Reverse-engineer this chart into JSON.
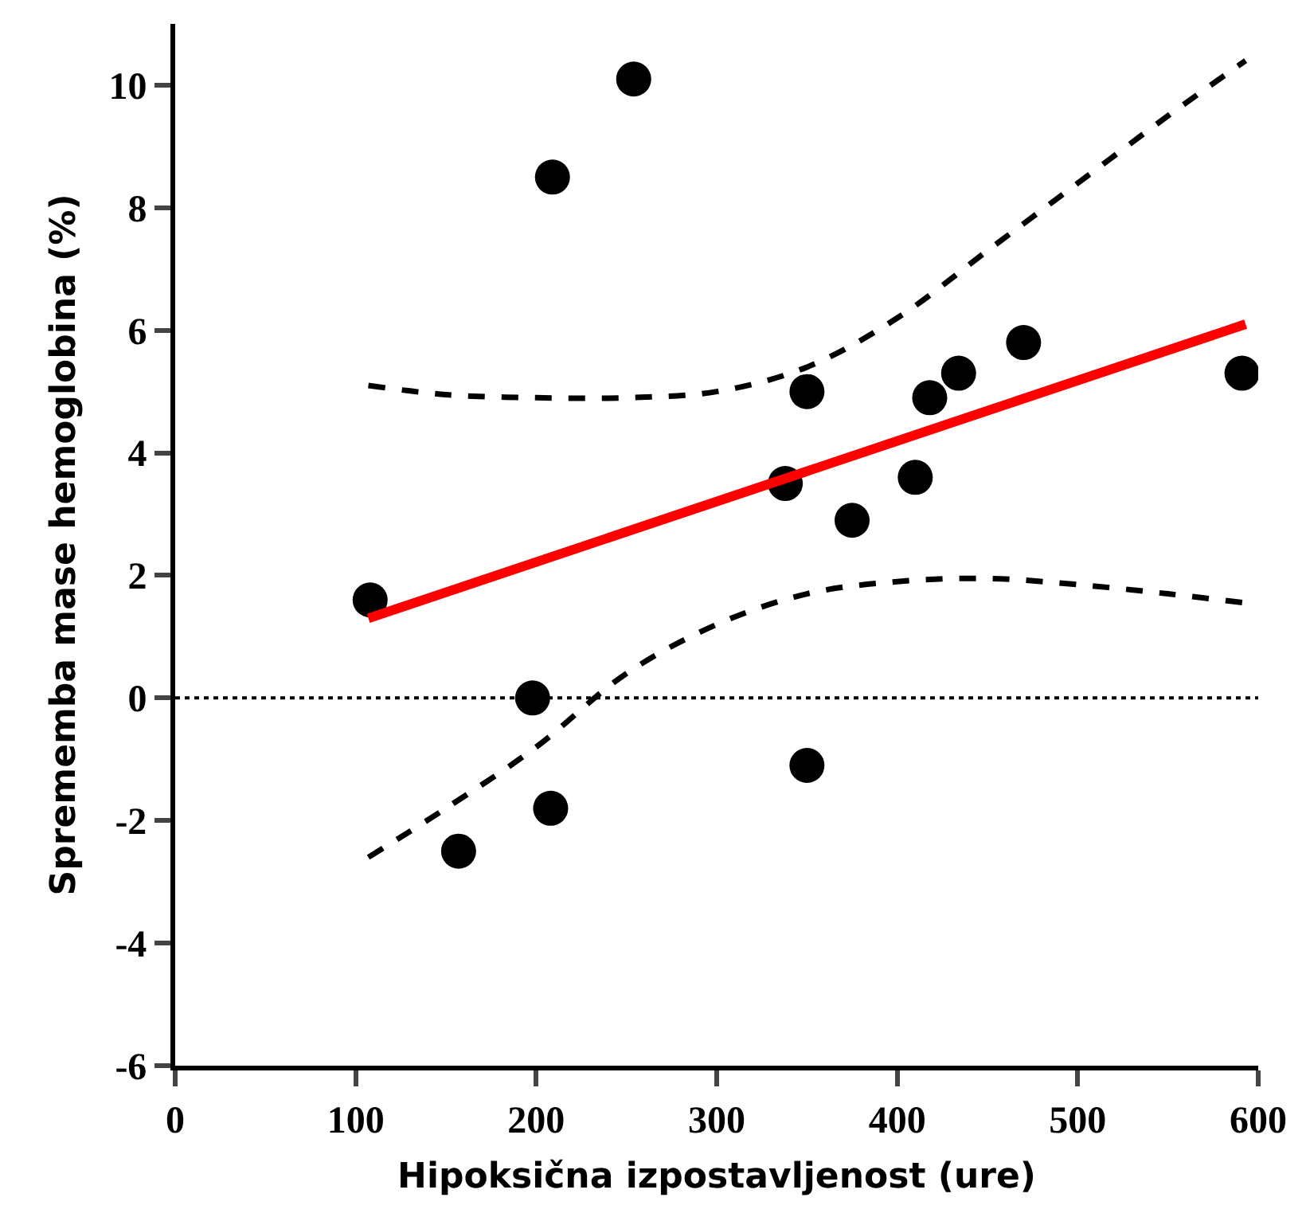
{
  "chart_data": {
    "type": "scatter",
    "xlabel": "Hipoksična izpostavljenost (ure)",
    "ylabel": "Sprememba mase hemoglobina (%)",
    "xlim": [
      0,
      600
    ],
    "xticks": [
      0,
      100,
      200,
      300,
      400,
      500,
      600
    ],
    "ylim": [
      -6,
      11
    ],
    "yticks": [
      -6,
      -4,
      -2,
      0,
      2,
      4,
      6,
      8,
      10
    ],
    "grid": false,
    "series": [
      {
        "marker": "circle",
        "color": "#000000",
        "x": [
          108,
          157,
          198,
          208,
          209,
          254,
          338,
          350,
          350,
          375,
          410,
          418,
          434,
          470,
          591
        ],
        "values": [
          1.6,
          -2.5,
          0,
          -1.8,
          8.5,
          10.1,
          3.5,
          5.0,
          -1.1,
          2.9,
          3.6,
          4.9,
          5.3,
          5.8,
          5.3
        ]
      },
      {
        "type": "line",
        "color": "#ff0000",
        "line_style": "solid",
        "x": [
          107,
          593
        ],
        "values": [
          1.3,
          6.1
        ]
      },
      {
        "type": "line",
        "color": "#000000",
        "line_style": "dashed",
        "x": [
          107,
          150,
          200,
          250,
          300,
          350,
          400,
          450,
          500,
          550,
          593
        ],
        "values": [
          5.1,
          4.95,
          4.9,
          4.9,
          5.0,
          5.4,
          6.2,
          7.3,
          8.4,
          9.5,
          10.4
        ]
      },
      {
        "type": "line",
        "color": "#000000",
        "line_style": "dashed",
        "x": [
          107,
          150,
          200,
          250,
          300,
          350,
          400,
          450,
          500,
          550,
          593
        ],
        "values": [
          -2.6,
          -1.8,
          -0.8,
          0.4,
          1.2,
          1.7,
          1.9,
          1.95,
          1.85,
          1.7,
          1.55
        ]
      }
    ],
    "ref_lines": [
      {
        "axis": "y",
        "value": 0,
        "color": "#000000",
        "line_style": "dotted"
      }
    ]
  }
}
